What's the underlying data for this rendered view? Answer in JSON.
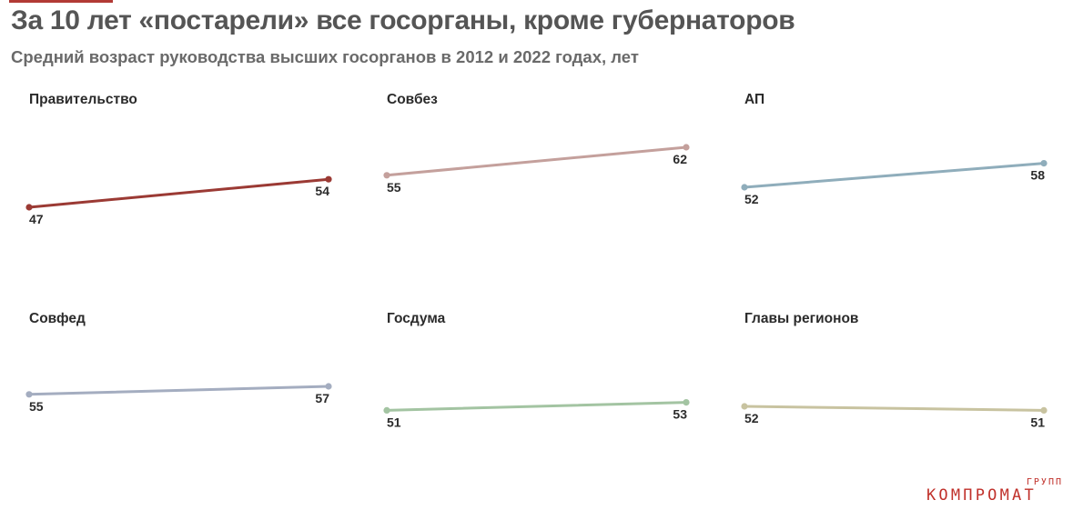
{
  "title": "За 10 лет «постарели» все госорганы, кроме губернаторов",
  "subtitle": "Средний возраст руководства высших госорганов в 2012 и 2022 годах, лет",
  "logo": {
    "small": "ГРУПП",
    "main": "КОМПРОМАТ"
  },
  "chart_data": [
    {
      "type": "line",
      "title": "Правительство",
      "x": [
        2012,
        2022
      ],
      "values": [
        47,
        54
      ],
      "color": "#9b3a34"
    },
    {
      "type": "line",
      "title": "Совбез",
      "x": [
        2012,
        2022
      ],
      "values": [
        55,
        62
      ],
      "color": "#c4a09c"
    },
    {
      "type": "line",
      "title": "АП",
      "x": [
        2012,
        2022
      ],
      "values": [
        52,
        58
      ],
      "color": "#8fadbb"
    },
    {
      "type": "line",
      "title": "Совфед",
      "x": [
        2012,
        2022
      ],
      "values": [
        55,
        57
      ],
      "color": "#a4adc0"
    },
    {
      "type": "line",
      "title": "Госдума",
      "x": [
        2012,
        2022
      ],
      "values": [
        51,
        53
      ],
      "color": "#a3c4a2"
    },
    {
      "type": "line",
      "title": "Главы регионов",
      "x": [
        2012,
        2022
      ],
      "values": [
        52,
        51
      ],
      "color": "#c8c3a0"
    }
  ]
}
